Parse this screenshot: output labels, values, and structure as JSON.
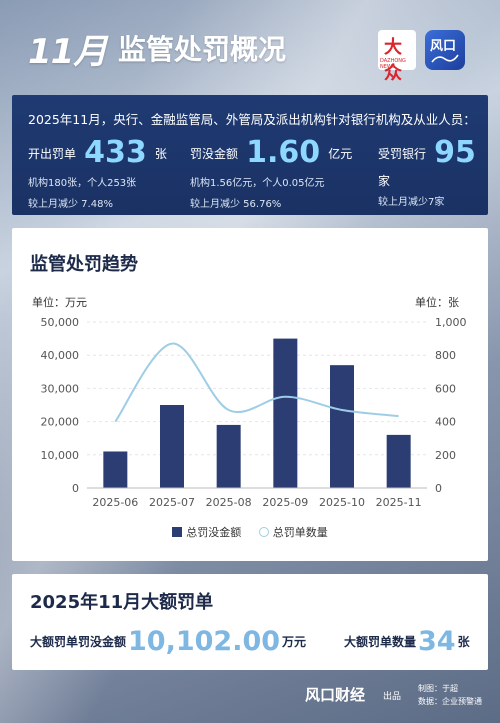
{
  "header": {
    "title_num": "11月",
    "title_text": "监管处罚概况",
    "logo1_mark": "大众",
    "logo1_sub": "DAZHONG NEWS",
    "logo2_mark": "风口"
  },
  "summary": {
    "intro": "2025年11月，央行、金融监管局、外管局及派出机构针对银行机构及从业人员：",
    "stats": [
      {
        "label": "开出罚单",
        "value": "433",
        "unit": "张",
        "detail1": "机构180张，个人253张",
        "detail2": "较上月减少 7.48%"
      },
      {
        "label": "罚没金额",
        "value": "1.60",
        "unit": "亿元",
        "detail1": "机构1.56亿元，个人0.05亿元",
        "detail2": "较上月减少 56.76%"
      },
      {
        "label": "受罚银行",
        "value": "95",
        "unit": "家",
        "detail1": "较上月减少7家",
        "detail2": ""
      }
    ]
  },
  "chart_card": {
    "title": "监管处罚趋势",
    "left_unit": "单位：万元",
    "right_unit": "单位：张"
  },
  "chart_data": {
    "type": "bar",
    "categories": [
      "2025-06",
      "2025-07",
      "2025-08",
      "2025-09",
      "2025-10",
      "2025-11"
    ],
    "series": [
      {
        "name": "总罚没金额",
        "type": "bar",
        "axis": "left",
        "values": [
          11000,
          25000,
          19000,
          45000,
          37000,
          16000
        ]
      },
      {
        "name": "总罚单数量",
        "type": "line",
        "axis": "right",
        "values": [
          400,
          870,
          470,
          550,
          470,
          433
        ]
      }
    ],
    "left_ylim": [
      0,
      50000
    ],
    "left_ticks": [
      "0",
      "10,000",
      "20,000",
      "30,000",
      "40,000",
      "50,000"
    ],
    "right_ylim": [
      0,
      1000
    ],
    "right_ticks": [
      "0",
      "200",
      "400",
      "600",
      "800",
      "1,000"
    ],
    "grid": true,
    "legend": "bottom",
    "colors": {
      "bar": "#2b3d73",
      "line": "#9ecde6"
    }
  },
  "fines": {
    "title": "2025年11月大额罚单",
    "amount_label": "大额罚单罚没金额",
    "amount_value": "10,102.00",
    "amount_unit": "万元",
    "count_label": "大额罚单数量",
    "count_value": "34",
    "count_unit": "张"
  },
  "footer": {
    "brand": "风口财经",
    "brand_sub": "出品",
    "maker": "制图：于超",
    "data_source": "数据：企业预警通"
  }
}
